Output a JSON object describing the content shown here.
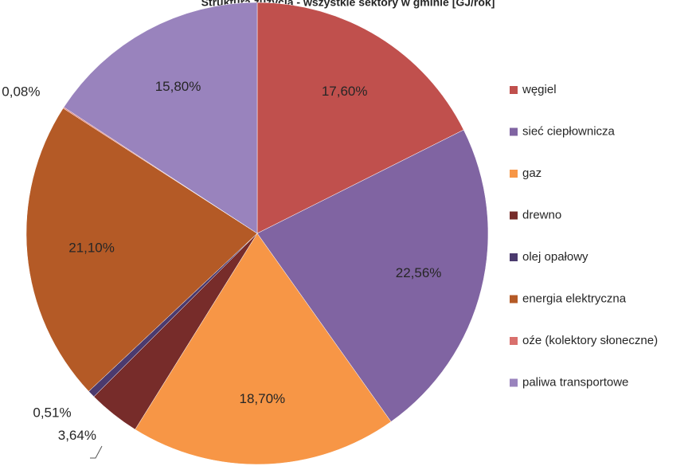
{
  "chart_data": {
    "type": "pie",
    "title": "Struktura zużycia - wszystkie sektory w gminie [GJ/rok]",
    "categories": [
      "węgiel",
      "sieć ciepłownicza",
      "gaz",
      "drewno",
      "olej opałowy",
      "energia elektryczna",
      "oźe (kolektory słoneczne)",
      "paliwa transportowe"
    ],
    "values": [
      17.6,
      22.56,
      18.7,
      3.64,
      0.51,
      21.1,
      0.08,
      15.8
    ],
    "value_labels": [
      "17,60%",
      "22,56%",
      "18,70%",
      "3,64%",
      "0,51%",
      "21,10%",
      "0,08%",
      "15,80%"
    ],
    "colors": [
      "#c0504d",
      "#8064a2",
      "#f79646",
      "#772c2a",
      "#4b3a6e",
      "#b45a26",
      "#d9706d",
      "#9983bd"
    ],
    "legend": "right"
  }
}
